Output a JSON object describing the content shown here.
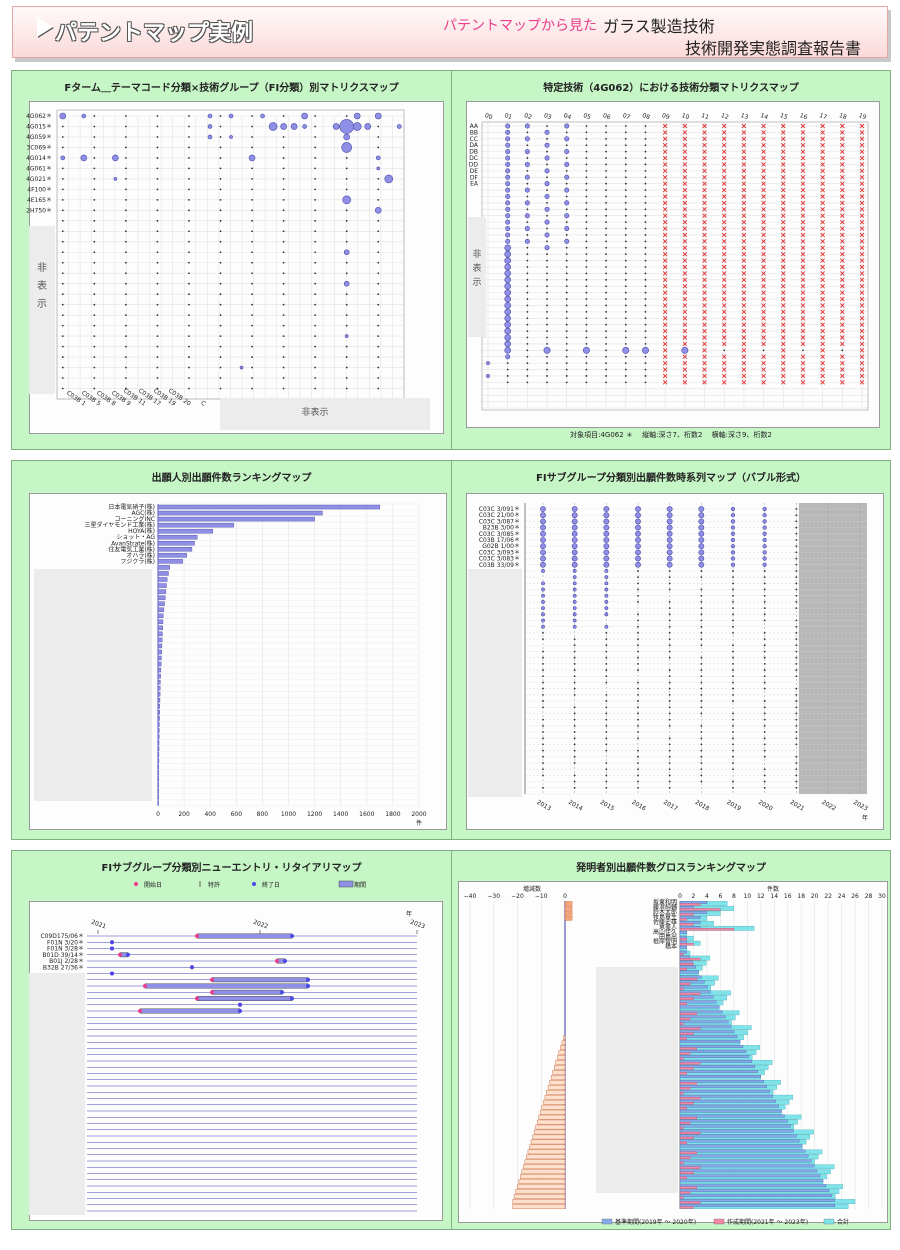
{
  "header": {
    "title": "パテントマップ実例",
    "subtitle_pink": "パテントマップから見た",
    "subtitle_main": "ガラス製造技術",
    "subtitle_report": "技術開発実態調査報告書"
  },
  "colors": {
    "panel_bg": "#c6f5c6",
    "bubble": "#8f8fe6",
    "cross": "#e03030",
    "pink": "#e83e8c"
  },
  "panels": [
    {
      "title": "Fターム＿テーマコード分類×技術グループ（FI分類）別マトリクスマップ",
      "row_labels": [
        "4G062",
        "4G015",
        "4G059",
        "3C069",
        "4G014",
        "4G061",
        "4G021",
        "4F100",
        "4E165",
        "2H750"
      ],
      "hidden_y_label": "非表示",
      "hidden_x_label": "非表示",
      "col_labels": [
        "C03B 1",
        "C03B 5",
        "C03B 8",
        "C03B 9",
        "C03B 11",
        "C03B 17",
        "C03B 19",
        "C03B 20",
        "C"
      ],
      "chart_data": {
        "type": "scatter",
        "title": "Fターム＿テーマコード分類×技術グループ（FI分類）別マトリクスマップ"
      }
    },
    {
      "title": "特定技術（4G062）における技術分類マトリクスマップ",
      "col_labels": [
        "00",
        "01",
        "02",
        "03",
        "04",
        "05",
        "06",
        "07",
        "08",
        "09",
        "10",
        "11",
        "12",
        "13",
        "14",
        "15",
        "16",
        "17",
        "18",
        "19"
      ],
      "row_labels": [
        "AA",
        "BB",
        "CC",
        "DA",
        "DB",
        "DC",
        "DD",
        "DE",
        "DF",
        "EA"
      ],
      "hidden_y_label": "非表示",
      "footer": "対象項目:4G062 ＊　 縦軸:深さ7、桁数2　 横軸:深さ9、桁数2",
      "chart_data": {
        "type": "scatter",
        "title": "特定技術（4G062）における技術分類マトリクスマップ"
      }
    },
    {
      "title": "出願人別出願件数ランキングマップ",
      "x_ticks": [
        "0",
        "200",
        "400",
        "600",
        "800",
        "1000",
        "1200",
        "1400",
        "1600",
        "1800",
        "2000"
      ],
      "x_unit": "件",
      "chart_data": {
        "type": "bar",
        "title": "出願人別出願件数ランキングマップ",
        "categories": [
          "日本電気硝子(株)",
          "AGC(株)",
          "コーニングINC",
          "三星ダイヤモンド工業(株)",
          "HOYA(株)",
          "ショット・AG",
          "AvanStrate(株)",
          "住友電気工業(株)",
          "オハラ(株)",
          "フジクラ(株)"
        ],
        "values": [
          1700,
          1260,
          1200,
          580,
          420,
          300,
          280,
          260,
          220,
          190
        ],
        "xlim": [
          0,
          2000
        ]
      }
    },
    {
      "title": "FIサブグループ分類別出願件数時系列マップ（バブル形式）",
      "row_labels": [
        "C03C 3/091",
        "C03C 21/00",
        "C03C 3/087",
        "B23B 3/00",
        "C03C 3/085",
        "C03B 17/06",
        "G02B 1/00",
        "C03C 3/093",
        "C03C 3/083",
        "C03B 33/09"
      ],
      "x_ticks": [
        "2013",
        "2014",
        "2015",
        "2016",
        "2017",
        "2018",
        "2019",
        "2020",
        "2021",
        "2022",
        "2023"
      ],
      "x_unit": "年",
      "chart_data": {
        "type": "scatter",
        "title": "FIサブグループ分類別出願件数時系列マップ（バブル形式）",
        "x": [
          "2013",
          "2014",
          "2015",
          "2016",
          "2017",
          "2018",
          "2019",
          "2020",
          "2021",
          "2022",
          "2023"
        ]
      }
    },
    {
      "title": "FIサブグループ分類別ニューエントリ・リタイアリマップ",
      "legend": [
        "開始日",
        "特許",
        "終了日",
        "期間"
      ],
      "x_ticks": [
        "2021",
        "2022",
        "2023"
      ],
      "x_unit": "年",
      "row_labels": [
        "C09D175/06",
        "F01N 3/20",
        "F01N 3/28",
        "B01D 39/14",
        "B01J 2/28",
        "B32B 27/36"
      ],
      "chart_data": {
        "type": "bar",
        "title": "FIサブグループ分類別ニューエントリ・リタイアリマップ"
      }
    },
    {
      "title": "発明者別出願件数グロスランキングマップ",
      "left_title": "増減数",
      "left_ticks": [
        "−40",
        "−30",
        "−20",
        "−10",
        "0"
      ],
      "right_title": "件数",
      "right_ticks": [
        "0",
        "2",
        "4",
        "6",
        "8",
        "10",
        "12",
        "14",
        "16",
        "18",
        "20",
        "22",
        "24",
        "26",
        "28",
        "30"
      ],
      "names": [
        "坂東和明",
        "藤浪純輔",
        "鈴木太郎",
        "牧島章生",
        "佐藤史雄",
        "恵美人",
        "高山佳久",
        "田島出",
        "根岸智明",
        "橋本"
      ],
      "legend": [
        "基準期間(2019年 〜 2020年)",
        "作成期間(2021年 〜 2023年)",
        "合計"
      ],
      "chart_data": {
        "type": "bar",
        "title": "発明者別出願件数グロスランキングマップ"
      }
    }
  ]
}
